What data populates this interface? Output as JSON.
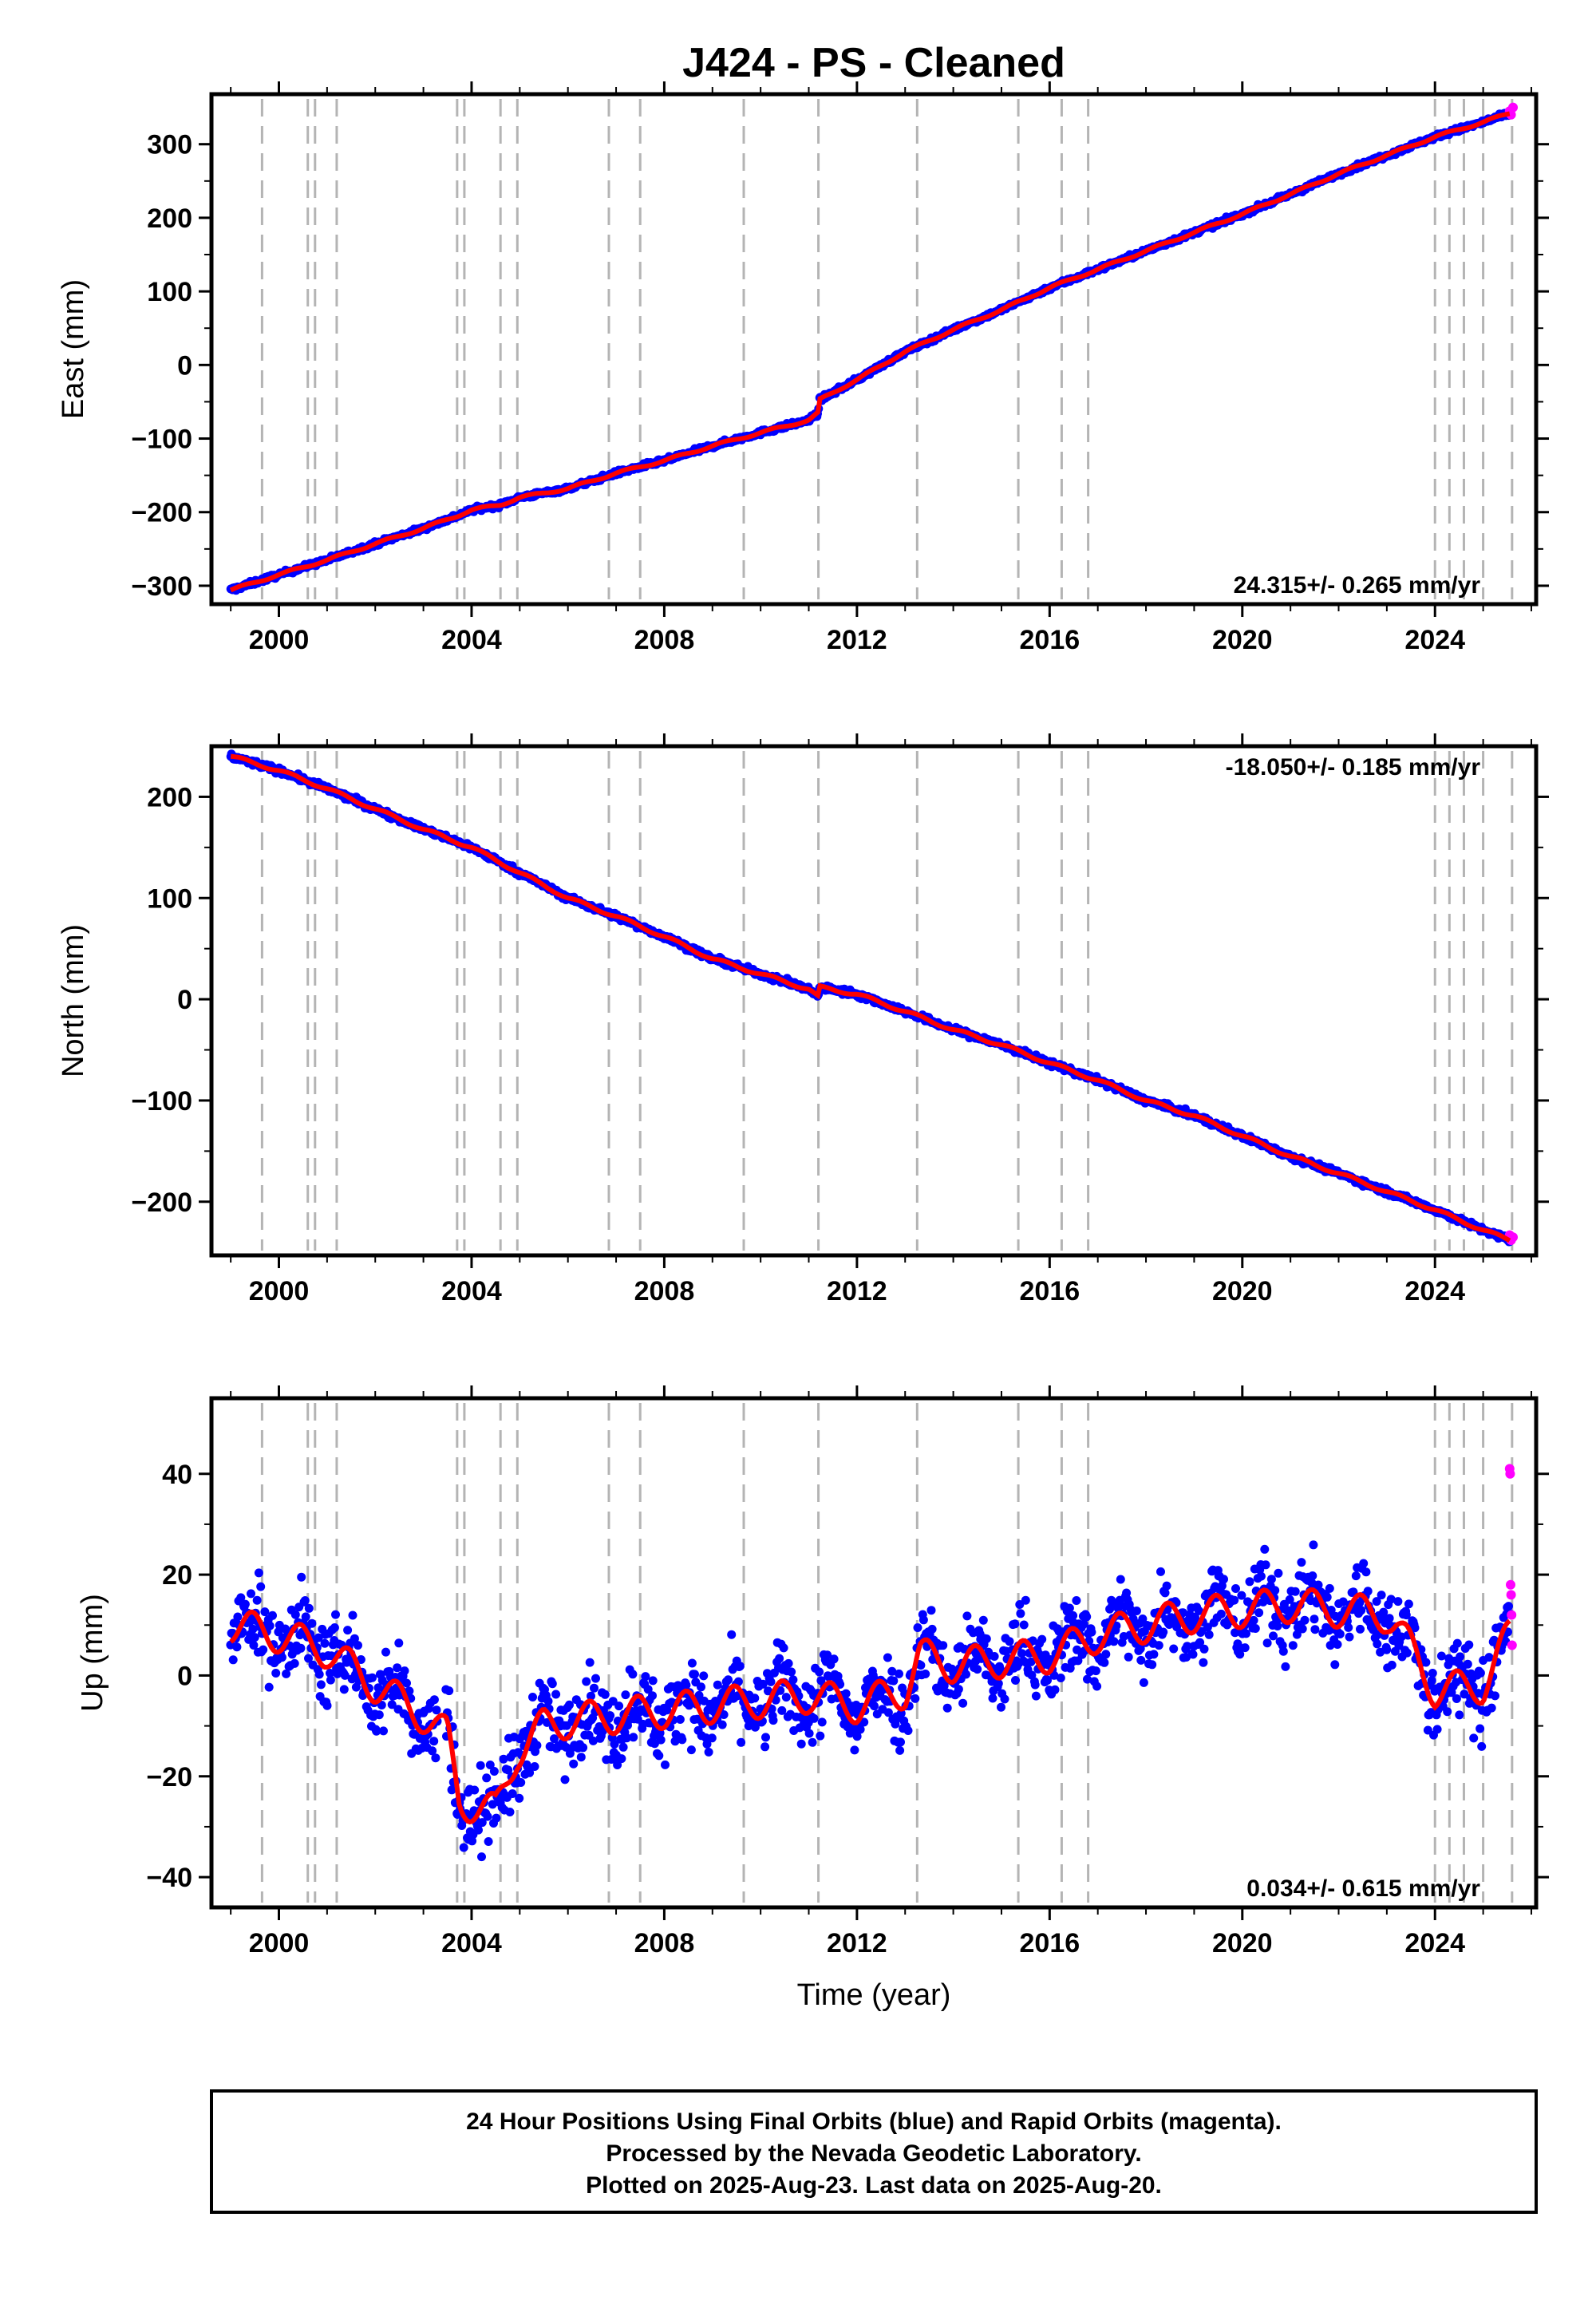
{
  "title": "J424  - PS - Cleaned",
  "colors": {
    "final": "#0000ff",
    "rapid": "#ff00ff",
    "model": "#ff0000",
    "offsets": "#b4b4b4",
    "frame": "#000000"
  },
  "footer": {
    "line1": "24 Hour Positions Using Final Orbits (blue) and Rapid Orbits (magenta).",
    "line2": "Processed by the Nevada Geodetic Laboratory.",
    "line3": "Plotted on 2025-Aug-23. Last data on 2025-Aug-20."
  },
  "offset_epochs": [
    1999.65,
    2000.6,
    2000.75,
    2001.2,
    2003.7,
    2003.85,
    2004.6,
    2004.95,
    2006.85,
    2007.5,
    2009.65,
    2011.2,
    2013.25,
    2015.35,
    2016.25,
    2016.8,
    2024.0,
    2024.3,
    2024.6,
    2025.0,
    2025.6
  ],
  "chart_data": [
    {
      "type": "scatter",
      "panel": "east",
      "ylabel": "East (mm)",
      "xlabel": "",
      "xlim": [
        1998.6,
        2026.1
      ],
      "ylim": [
        -325,
        368
      ],
      "yticks": [
        -300,
        -200,
        -100,
        0,
        100,
        200,
        300
      ],
      "ytick_labels": [
        "−300",
        "−200",
        "−100",
        "0",
        "100",
        "200",
        "300"
      ],
      "xticks": [
        2000,
        2004,
        2008,
        2012,
        2016,
        2020,
        2024
      ],
      "xtick_labels": [
        "2000",
        "2004",
        "2008",
        "2012",
        "2016",
        "2020",
        "2024"
      ],
      "rate": "24.315+/- 0.265 mm/yr",
      "rate_position": "bottom-right",
      "series": [
        {
          "role": "final",
          "x": [
            1999.0,
            2000.0,
            2001.0,
            2002.0,
            2003.0,
            2003.7,
            2004.0,
            2004.6,
            2005.0,
            2006.0,
            2007.0,
            2008.0,
            2009.0,
            2010.0,
            2011.0,
            2011.2,
            2011.21,
            2012.0,
            2013.0,
            2014.0,
            2015.0,
            2016.0,
            2017.0,
            2018.0,
            2019.0,
            2020.0,
            2021.0,
            2022.0,
            2023.0,
            2024.0,
            2025.0,
            2025.55
          ],
          "y": [
            -306,
            -285,
            -265,
            -243,
            -222,
            -205,
            -197,
            -190,
            -180,
            -168,
            -147,
            -130,
            -110,
            -92,
            -75,
            -65,
            -48,
            -20,
            18,
            48,
            75,
            105,
            130,
            155,
            180,
            205,
            232,
            260,
            285,
            310,
            330,
            342
          ]
        },
        {
          "role": "rapid",
          "x": [
            2025.55,
            2025.58,
            2025.62
          ],
          "y": [
            345,
            340,
            350
          ]
        }
      ]
    },
    {
      "type": "scatter",
      "panel": "north",
      "ylabel": "North (mm)",
      "xlabel": "",
      "xlim": [
        1998.6,
        2026.1
      ],
      "ylim": [
        -253,
        250
      ],
      "yticks": [
        -200,
        -100,
        0,
        100,
        200
      ],
      "ytick_labels": [
        "−200",
        "−100",
        "0",
        "100",
        "200"
      ],
      "xticks": [
        2000,
        2004,
        2008,
        2012,
        2016,
        2020,
        2024
      ],
      "xtick_labels": [
        "2000",
        "2004",
        "2008",
        "2012",
        "2016",
        "2020",
        "2024"
      ],
      "rate": "-18.050+/- 0.185 mm/yr",
      "rate_position": "top-right",
      "series": [
        {
          "role": "final",
          "x": [
            1999.0,
            2000.0,
            2001.0,
            2002.0,
            2003.0,
            2004.0,
            2005.0,
            2006.0,
            2007.0,
            2008.0,
            2009.0,
            2010.0,
            2011.0,
            2011.2,
            2011.21,
            2012.0,
            2013.0,
            2014.0,
            2015.0,
            2016.0,
            2017.0,
            2018.0,
            2019.0,
            2020.0,
            2021.0,
            2022.0,
            2023.0,
            2024.0,
            2025.0,
            2025.55
          ],
          "y": [
            240,
            226,
            208,
            188,
            168,
            150,
            125,
            100,
            82,
            62,
            40,
            25,
            10,
            2,
            12,
            5,
            -12,
            -30,
            -45,
            -63,
            -80,
            -100,
            -115,
            -135,
            -155,
            -172,
            -190,
            -208,
            -228,
            -238
          ]
        },
        {
          "role": "rapid",
          "x": [
            2025.55,
            2025.58,
            2025.62
          ],
          "y": [
            -233,
            -238,
            -235
          ]
        }
      ]
    },
    {
      "type": "scatter",
      "panel": "up",
      "ylabel": "Up (mm)",
      "xlabel": "Time (year)",
      "xlim": [
        1998.6,
        2026.1
      ],
      "ylim": [
        -46,
        55
      ],
      "yticks": [
        -40,
        -20,
        0,
        20,
        40
      ],
      "ytick_labels": [
        "−40",
        "−20",
        "0",
        "20",
        "40"
      ],
      "xticks": [
        2000,
        2004,
        2008,
        2012,
        2016,
        2020,
        2024
      ],
      "xtick_labels": [
        "2000",
        "2004",
        "2008",
        "2012",
        "2016",
        "2020",
        "2024"
      ],
      "rate": "0.034+/- 0.615 mm/yr",
      "rate_position": "bottom-right",
      "series": [
        {
          "role": "final",
          "x": [
            1999.0,
            2000.0,
            2001.0,
            2002.0,
            2003.0,
            2003.5,
            2003.75,
            2004.5,
            2004.95,
            2005.5,
            2006.0,
            2007.0,
            2008.0,
            2009.0,
            2010.0,
            2011.0,
            2012.0,
            2013.0,
            2013.3,
            2014.0,
            2015.0,
            2016.0,
            2017.0,
            2018.0,
            2019.0,
            2020.0,
            2021.0,
            2022.0,
            2023.0,
            2023.2,
            2024.0,
            2025.0,
            2025.55
          ],
          "y": [
            10,
            8,
            5,
            -2,
            -8,
            -12,
            -25,
            -27,
            -15,
            -10,
            -9,
            -8,
            -7,
            -6,
            -5,
            -4,
            -6,
            -3,
            4,
            2,
            3,
            4,
            8,
            10,
            12,
            13,
            14,
            13,
            12,
            10,
            -3,
            -2,
            8
          ]
        },
        {
          "role": "rapid",
          "x": [
            2025.55,
            2025.56,
            2025.57,
            2025.58,
            2025.59,
            2025.6
          ],
          "y": [
            41,
            40,
            18,
            16,
            12,
            6
          ]
        }
      ]
    }
  ]
}
